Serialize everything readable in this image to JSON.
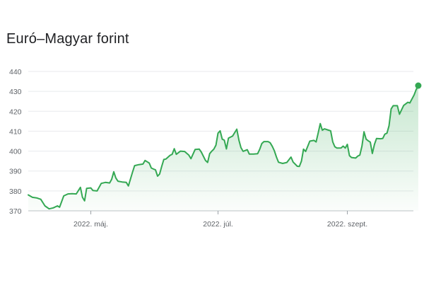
{
  "chart_data": {
    "type": "area",
    "title": "Euró–Magyar forint",
    "ylim": [
      370,
      440
    ],
    "y_ticks": [
      440,
      430,
      420,
      410,
      400,
      390,
      380,
      370
    ],
    "x_ticks": [
      {
        "label": "2022. máj.",
        "x": 30
      },
      {
        "label": "2022. júl.",
        "x": 91
      },
      {
        "label": "2022. szept.",
        "x": 153
      }
    ],
    "x_range": [
      0,
      184
    ],
    "grid": true,
    "colors": {
      "line": "#34a853",
      "text": "#5f6368",
      "grid": "#e8eaed"
    },
    "series": [
      {
        "values": [
          [
            0,
            378
          ],
          [
            2,
            376.8
          ],
          [
            4,
            376.5
          ],
          [
            6,
            375.8
          ],
          [
            8,
            372.5
          ],
          [
            10,
            371
          ],
          [
            12,
            371.5
          ],
          [
            14,
            372.5
          ],
          [
            15,
            371.8
          ],
          [
            17,
            377.5
          ],
          [
            19,
            378.5
          ],
          [
            21,
            378.6
          ],
          [
            23,
            378.5
          ],
          [
            25,
            381.8
          ],
          [
            26,
            376.8
          ],
          [
            27,
            375
          ],
          [
            28,
            381.3
          ],
          [
            30,
            381.5
          ],
          [
            31,
            380.2
          ],
          [
            33,
            380
          ],
          [
            35,
            383.8
          ],
          [
            37,
            384.3
          ],
          [
            39,
            384
          ],
          [
            40,
            385.8
          ],
          [
            41,
            389.6
          ],
          [
            42,
            386.5
          ],
          [
            43,
            384.9
          ],
          [
            45,
            384.5
          ],
          [
            47,
            384.3
          ],
          [
            48,
            382.5
          ],
          [
            50,
            389.5
          ],
          [
            51,
            392.7
          ],
          [
            53,
            393.2
          ],
          [
            55,
            393.5
          ],
          [
            56,
            395.3
          ],
          [
            58,
            394
          ],
          [
            59,
            391.5
          ],
          [
            60,
            391
          ],
          [
            61,
            390.6
          ],
          [
            62,
            387.4
          ],
          [
            63,
            388.5
          ],
          [
            64,
            392.4
          ],
          [
            65,
            395.8
          ],
          [
            66,
            396
          ],
          [
            68,
            397.9
          ],
          [
            69,
            398.4
          ],
          [
            70,
            401.2
          ],
          [
            71,
            398.4
          ],
          [
            73,
            400
          ],
          [
            75,
            399.8
          ],
          [
            77,
            398
          ],
          [
            78,
            396.2
          ],
          [
            80,
            400.8
          ],
          [
            82,
            401
          ],
          [
            83,
            399.5
          ],
          [
            85,
            395.3
          ],
          [
            86,
            394.3
          ],
          [
            87,
            398.7
          ],
          [
            88,
            400
          ],
          [
            89,
            401
          ],
          [
            90,
            403
          ],
          [
            91,
            409
          ],
          [
            92,
            410.2
          ],
          [
            93,
            406
          ],
          [
            94,
            405.5
          ],
          [
            95,
            401.1
          ],
          [
            96,
            406.5
          ],
          [
            98,
            407.6
          ],
          [
            100,
            411
          ],
          [
            101,
            405.5
          ],
          [
            102,
            401.7
          ],
          [
            103,
            399.9
          ],
          [
            105,
            400.7
          ],
          [
            106,
            398.5
          ],
          [
            108,
            398.5
          ],
          [
            110,
            398.7
          ],
          [
            111,
            401
          ],
          [
            112,
            403.8
          ],
          [
            113,
            404.8
          ],
          [
            115,
            404.8
          ],
          [
            116,
            404.2
          ],
          [
            117,
            402.4
          ],
          [
            118,
            400.2
          ],
          [
            119,
            397
          ],
          [
            120,
            394.4
          ],
          [
            122,
            393.8
          ],
          [
            124,
            394.3
          ],
          [
            126,
            397
          ],
          [
            127,
            394.5
          ],
          [
            129,
            392.4
          ],
          [
            130,
            392.3
          ],
          [
            131,
            395
          ],
          [
            132,
            401
          ],
          [
            133,
            399.8
          ],
          [
            135,
            405
          ],
          [
            137,
            405.4
          ],
          [
            138,
            404.6
          ],
          [
            139,
            409
          ],
          [
            140,
            413.8
          ],
          [
            141,
            410.5
          ],
          [
            142,
            411.2
          ],
          [
            144,
            410.5
          ],
          [
            145,
            410.2
          ],
          [
            146,
            404.6
          ],
          [
            147,
            402.2
          ],
          [
            148,
            401.5
          ],
          [
            150,
            401.6
          ],
          [
            151,
            402.5
          ],
          [
            152,
            401.5
          ],
          [
            153,
            403.4
          ],
          [
            154,
            397.7
          ],
          [
            155,
            396.8
          ],
          [
            157,
            396.5
          ],
          [
            158,
            397.5
          ],
          [
            159,
            398
          ],
          [
            160,
            402.5
          ],
          [
            161,
            409.7
          ],
          [
            162,
            406
          ],
          [
            163,
            405.2
          ],
          [
            164,
            404.5
          ],
          [
            165,
            398.8
          ],
          [
            166,
            403.4
          ],
          [
            167,
            406.3
          ],
          [
            169,
            406.2
          ],
          [
            170,
            406.4
          ],
          [
            171,
            408.5
          ],
          [
            172,
            409
          ],
          [
            173,
            412.7
          ],
          [
            174,
            421.2
          ],
          [
            175,
            422.8
          ],
          [
            177,
            422.8
          ],
          [
            178,
            418.5
          ],
          [
            179,
            420.7
          ],
          [
            180,
            422.9
          ],
          [
            182,
            424.5
          ],
          [
            183,
            424.2
          ],
          [
            184,
            426.2
          ],
          [
            185,
            428.2
          ],
          [
            186,
            430.9
          ],
          [
            187,
            432.9
          ]
        ]
      }
    ]
  }
}
